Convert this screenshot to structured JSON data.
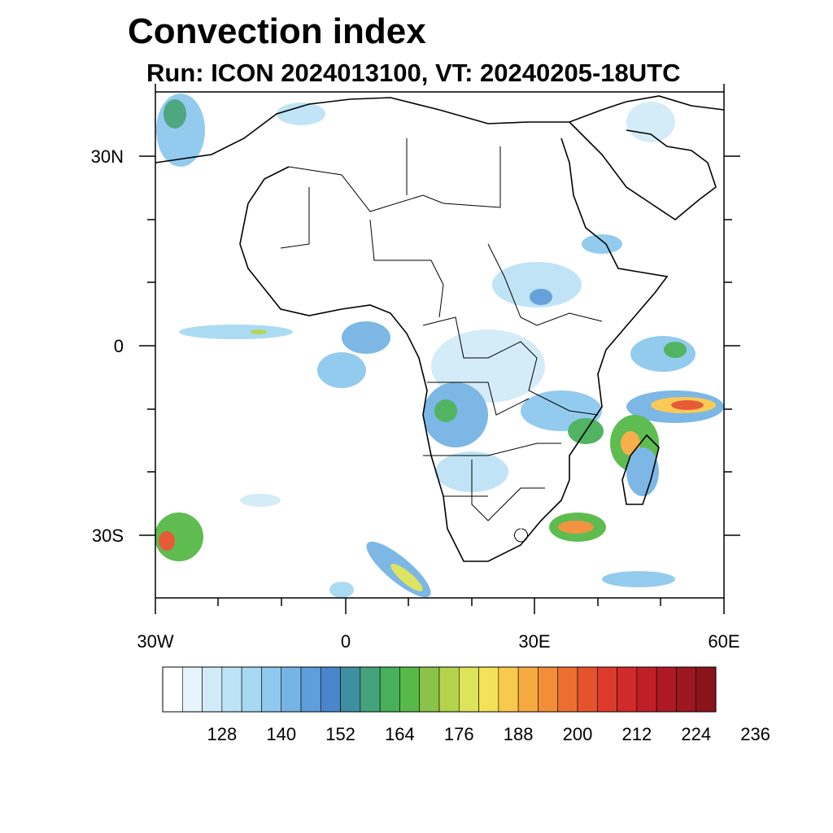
{
  "title": "Convection index",
  "subtitle": "Run: ICON 2024013100,  VT: 20240205-18UTC",
  "map": {
    "lon_range": [
      -30,
      60
    ],
    "lat_range": [
      -40,
      40
    ],
    "lat_ticks": [
      {
        "label": "30N"
      },
      {
        "label": "0"
      },
      {
        "label": "30S"
      }
    ],
    "lon_ticks": [
      {
        "label": "30W"
      },
      {
        "label": "0"
      },
      {
        "label": "30E"
      },
      {
        "label": "60E"
      }
    ],
    "region": "Africa"
  },
  "colorbar": {
    "colors": [
      "#ffffff",
      "#e8f4fb",
      "#d2ebf8",
      "#bde3f6",
      "#a6daf3",
      "#8ec9ee",
      "#76b4e4",
      "#5e9ed9",
      "#4a86c9",
      "#3f8fa2",
      "#44a37a",
      "#47b05a",
      "#56b948",
      "#8bc34a",
      "#b4d34c",
      "#dde35a",
      "#f3e158",
      "#f8c94c",
      "#f6ab41",
      "#f28e38",
      "#ec6f31",
      "#e5532d",
      "#dc3b2c",
      "#d02a2a",
      "#c01f27",
      "#ae1a24",
      "#9c1720",
      "#8a141c"
    ],
    "labels": [
      "128",
      "140",
      "152",
      "164",
      "176",
      "188",
      "200",
      "212",
      "224",
      "236"
    ]
  }
}
